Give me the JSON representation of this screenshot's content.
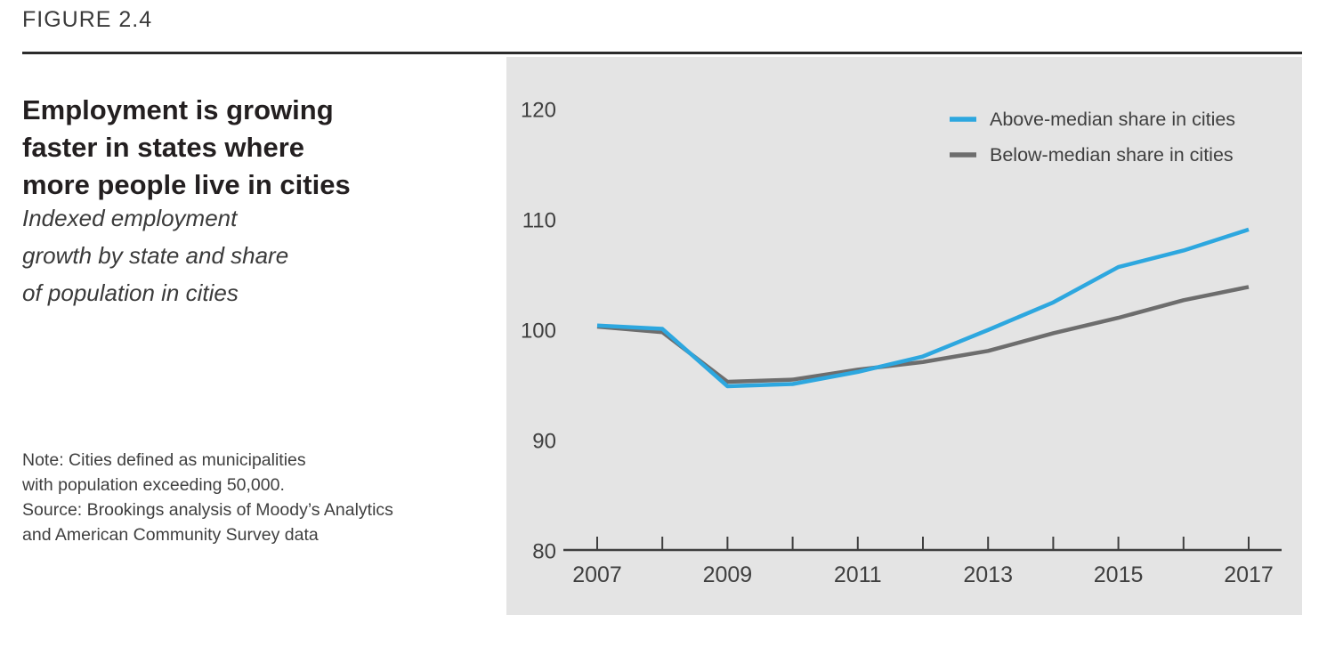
{
  "figure_label": "FIGURE 2.4",
  "title": "Employment is growing\nfaster in states where\nmore people live in cities",
  "subtitle": "Indexed employment\ngrowth by state and share\nof population in cities",
  "note": "Note: Cities defined as municipalities\nwith population exceeding 50,000.\nSource: Brookings analysis of Moody’s Analytics\nand American Community Survey data",
  "colors": {
    "above_line": "#2da7df",
    "below_line": "#6d6d6d",
    "panel_background": "#e4e4e4",
    "axis_text": "#3f3f3f",
    "rule": "#2b2b2b"
  },
  "chart_data": {
    "type": "line",
    "title": "Employment is growing faster in states where more people live in cities",
    "subtitle": "Indexed employment growth by state and share of population in cities",
    "x": [
      2007,
      2008,
      2009,
      2010,
      2011,
      2012,
      2013,
      2014,
      2015,
      2016,
      2017
    ],
    "series": [
      {
        "name": "Above-median share in cities",
        "color": "#2da7df",
        "values": [
          100.5,
          100.2,
          95.0,
          95.2,
          96.3,
          97.7,
          100.1,
          102.6,
          105.8,
          107.3,
          109.2
        ]
      },
      {
        "name": "Below-median share in cities",
        "color": "#6d6d6d",
        "values": [
          100.4,
          99.9,
          95.4,
          95.6,
          96.5,
          97.2,
          98.2,
          99.8,
          101.2,
          102.8,
          104.0
        ]
      }
    ],
    "ylim": [
      80,
      120
    ],
    "yticks": [
      80,
      90,
      100,
      110,
      120
    ],
    "xtick_labels": [
      2007,
      2009,
      2011,
      2013,
      2015,
      2017
    ],
    "grid": false,
    "legend_position": "top-right"
  }
}
